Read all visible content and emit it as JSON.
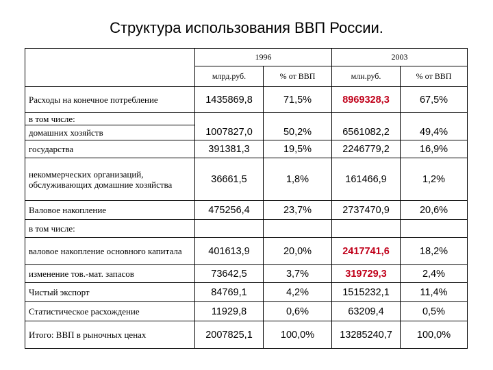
{
  "title": "Структура использования ВВП России.",
  "years": [
    "1996",
    "2003"
  ],
  "units": [
    "млрд.руб.",
    "% от ВВП",
    "млн.руб.",
    "% от ВВП"
  ],
  "rows": [
    {
      "label": "Расходы на конечное потребление",
      "v1": "1435869,8",
      "p1": "71,5%",
      "v2": "8969328,3",
      "p2": "67,5%"
    },
    {
      "label": "в том числе:"
    },
    {
      "label": "домашних хозяйств",
      "v1": "1007827,0",
      "p1": "50,2%",
      "v2": "6561082,2",
      "p2": "49,4%"
    },
    {
      "label": "государства",
      "v1": "391381,3",
      "p1": "19,5%",
      "v2": "2246779,2",
      "p2": "16,9%"
    },
    {
      "label": "некоммерческих организаций, обслуживающих домашние хозяйства",
      "v1": "36661,5",
      "p1": "1,8%",
      "v2": "161466,9",
      "p2": "1,2%"
    },
    {
      "label": "Валовое накопление",
      "v1": "475256,4",
      "p1": "23,7%",
      "v2": "2737470,9",
      "p2": "20,6%"
    },
    {
      "label": "в том числе:"
    },
    {
      "label": "валовое накопление основного капитала",
      "v1": "401613,9",
      "p1": "20,0%",
      "v2": "2417741,6",
      "p2": "18,2%"
    },
    {
      "label": "изменение тов.-мат. запасов",
      "v1": "73642,5",
      "p1": "3,7%",
      "v2": "319729,3",
      "p2": "2,4%"
    },
    {
      "label": "Чистый экспорт",
      "v1": "84769,1",
      "p1": "4,2%",
      "v2": "1515232,1",
      "p2": "11,4%"
    },
    {
      "label": "Статистическое расхождение",
      "v1": "11929,8",
      "p1": "0,6%",
      "v2": "63209,4",
      "p2": "0,5%"
    },
    {
      "label": "Итого: ВВП в рыночных ценах",
      "v1": "2007825,1",
      "p1": "100,0%",
      "v2": "13285240,7",
      "p2": "100,0%"
    }
  ],
  "colors": {
    "highlight": "#c0001a"
  }
}
